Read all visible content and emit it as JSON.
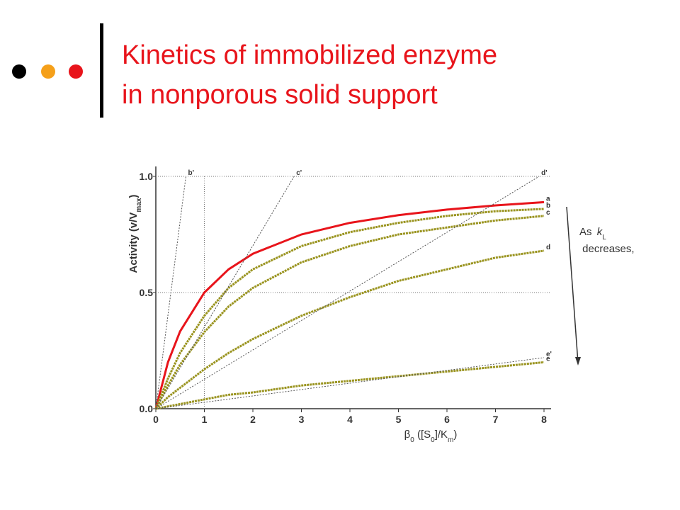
{
  "slide": {
    "title_lines": [
      "Kinetics of immobilized enzyme",
      "in nonporous solid support"
    ]
  },
  "chart_data": {
    "type": "line",
    "xlabel_parts": [
      "β",
      "0",
      " ([S",
      "0",
      "]/K",
      "m",
      ")"
    ],
    "ylabel_parts": [
      "Activity (v/V",
      "max",
      ")"
    ],
    "annotation_parts": [
      "As ",
      "k",
      "L",
      " decreases,"
    ],
    "xlim": [
      0,
      8
    ],
    "ylim": [
      0,
      1
    ],
    "xticks": [
      0,
      1,
      2,
      3,
      4,
      5,
      6,
      7,
      8
    ],
    "yticks": [
      {
        "value": 0,
        "label": "0.0"
      },
      {
        "value": 0.5,
        "label": "0.5"
      },
      {
        "value": 1,
        "label": "1.0"
      }
    ],
    "grid": true,
    "vlines": [
      1
    ],
    "series": [
      {
        "name": "a",
        "color": "#e8141b",
        "style": "solid",
        "x": [
          0,
          0.25,
          0.5,
          1,
          1.5,
          2,
          3,
          4,
          5,
          6,
          7,
          8
        ],
        "values": [
          0,
          0.2,
          0.333,
          0.5,
          0.6,
          0.667,
          0.75,
          0.8,
          0.833,
          0.857,
          0.875,
          0.889
        ]
      },
      {
        "name": "b",
        "color": "#9a9420",
        "style": "dashed",
        "x": [
          0,
          0.25,
          0.5,
          1,
          1.5,
          2,
          3,
          4,
          5,
          6,
          7,
          8
        ],
        "values": [
          0,
          0.13,
          0.24,
          0.4,
          0.52,
          0.6,
          0.7,
          0.76,
          0.8,
          0.83,
          0.85,
          0.86
        ]
      },
      {
        "name": "c",
        "color": "#9a9420",
        "style": "dashed",
        "x": [
          0,
          0.25,
          0.5,
          1,
          1.5,
          2,
          3,
          4,
          5,
          6,
          7,
          8
        ],
        "values": [
          0,
          0.1,
          0.19,
          0.33,
          0.44,
          0.52,
          0.63,
          0.7,
          0.75,
          0.78,
          0.81,
          0.83
        ]
      },
      {
        "name": "d",
        "color": "#9a9420",
        "style": "dashed",
        "x": [
          0,
          0.25,
          0.5,
          1,
          1.5,
          2,
          3,
          4,
          5,
          6,
          7,
          8
        ],
        "values": [
          0,
          0.05,
          0.09,
          0.17,
          0.24,
          0.3,
          0.4,
          0.48,
          0.55,
          0.6,
          0.65,
          0.68
        ]
      },
      {
        "name": "e",
        "color": "#9a9420",
        "style": "dashed",
        "x": [
          0,
          0.25,
          0.5,
          1,
          1.5,
          2,
          3,
          4,
          5,
          6,
          7,
          8
        ],
        "values": [
          0,
          0.01,
          0.02,
          0.04,
          0.06,
          0.07,
          0.1,
          0.12,
          0.14,
          0.16,
          0.18,
          0.2
        ]
      },
      {
        "name": "b'",
        "color": "#555555",
        "style": "dotted",
        "x": [
          0,
          0.62
        ],
        "values": [
          0,
          1
        ]
      },
      {
        "name": "c'",
        "color": "#555555",
        "style": "dotted",
        "x": [
          0,
          2.85
        ],
        "values": [
          0,
          1
        ]
      },
      {
        "name": "d'",
        "color": "#555555",
        "style": "dotted",
        "x": [
          0,
          7.9
        ],
        "values": [
          0,
          1
        ]
      },
      {
        "name": "e'",
        "color": "#555555",
        "style": "dotted",
        "x": [
          0,
          8
        ],
        "values": [
          0,
          0.22
        ]
      }
    ]
  }
}
